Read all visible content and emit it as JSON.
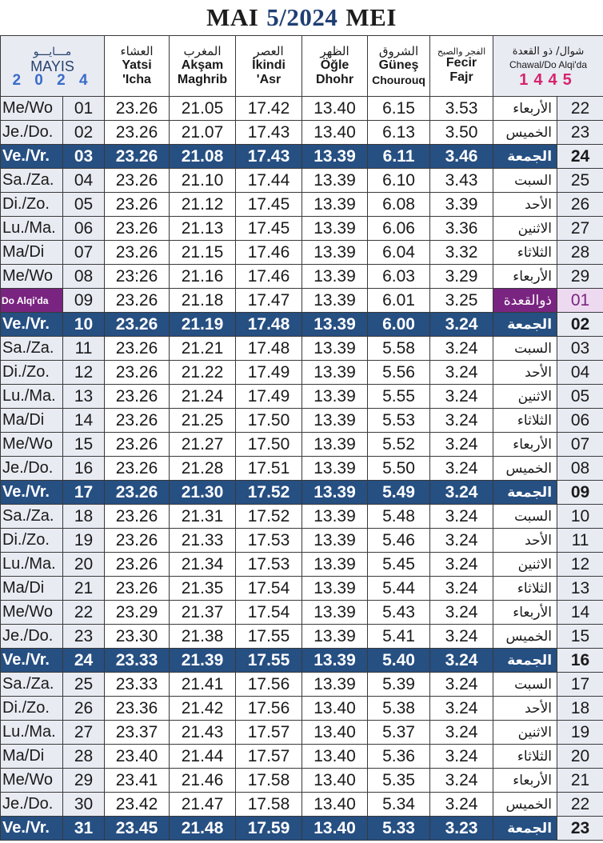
{
  "title": {
    "left": "MAI",
    "number": "5/2024",
    "right": "MEI"
  },
  "headers": {
    "month": {
      "ar": "مـــايـــو",
      "name": "MAYIS",
      "year": "2 0 2 4"
    },
    "isha": {
      "ar": "العشاء",
      "l1": "Yatsi",
      "l2": "'Icha"
    },
    "maghrib": {
      "ar": "المغرب",
      "l1": "Akşam",
      "l2": "Maghrib"
    },
    "asr": {
      "ar": "العصر",
      "l1": "İkindi",
      "l2": "'Asr"
    },
    "dhuhr": {
      "ar": "الظهر",
      "l1": "Öğle",
      "l2": "Dhohr"
    },
    "sunrise": {
      "ar": "الشروق",
      "l1": "Güneş",
      "l2": "Chourouq"
    },
    "fajr": {
      "ar": "الفجر والصبح",
      "l1": "Fecir",
      "l2": "Fajr"
    },
    "hijri": {
      "ar": "شوال/ ذو القعدة",
      "lat": "Chawal/Do Alqi'da",
      "year": "1445"
    }
  },
  "rows": [
    {
      "day": "Me/Wo",
      "date": "01",
      "isha": "23.26",
      "maghrib": "21.05",
      "asr": "17.42",
      "dhuhr": "13.40",
      "sunrise": "6.15",
      "fajr": "3.53",
      "arday": "الأربعاء",
      "hijri": "22",
      "type": ""
    },
    {
      "day": "Je./Do.",
      "date": "02",
      "isha": "23.26",
      "maghrib": "21.07",
      "asr": "17.43",
      "dhuhr": "13.40",
      "sunrise": "6.13",
      "fajr": "3.50",
      "arday": "الخميس",
      "hijri": "23",
      "type": ""
    },
    {
      "day": "Ve./Vr.",
      "date": "03",
      "isha": "23.26",
      "maghrib": "21.08",
      "asr": "17.43",
      "dhuhr": "13.39",
      "sunrise": "6.11",
      "fajr": "3.46",
      "arday": "الجمعة",
      "hijri": "24",
      "type": "fri"
    },
    {
      "day": "Sa./Za.",
      "date": "04",
      "isha": "23.26",
      "maghrib": "21.10",
      "asr": "17.44",
      "dhuhr": "13.39",
      "sunrise": "6.10",
      "fajr": "3.43",
      "arday": "السبت",
      "hijri": "25",
      "type": ""
    },
    {
      "day": "Di./Zo.",
      "date": "05",
      "isha": "23.26",
      "maghrib": "21.12",
      "asr": "17.45",
      "dhuhr": "13.39",
      "sunrise": "6.08",
      "fajr": "3.39",
      "arday": "الأحد",
      "hijri": "26",
      "type": ""
    },
    {
      "day": "Lu./Ma.",
      "date": "06",
      "isha": "23.26",
      "maghrib": "21.13",
      "asr": "17.45",
      "dhuhr": "13.39",
      "sunrise": "6.06",
      "fajr": "3.36",
      "arday": "الاثنين",
      "hijri": "27",
      "type": ""
    },
    {
      "day": "Ma/Di",
      "date": "07",
      "isha": "23.26",
      "maghrib": "21.15",
      "asr": "17.46",
      "dhuhr": "13.39",
      "sunrise": "6.04",
      "fajr": "3.32",
      "arday": "الثلاثاء",
      "hijri": "28",
      "type": ""
    },
    {
      "day": "Me/Wo",
      "date": "08",
      "isha": "23:26",
      "maghrib": "21.16",
      "asr": "17.46",
      "dhuhr": "13.39",
      "sunrise": "6.03",
      "fajr": "3.29",
      "arday": "الأربعاء",
      "hijri": "29",
      "type": ""
    },
    {
      "day": "Do Alqi'da",
      "date": "09",
      "isha": "23.26",
      "maghrib": "21.18",
      "asr": "17.47",
      "dhuhr": "13.39",
      "sunrise": "6.01",
      "fajr": "3.25",
      "arday": "ذوالقعدة",
      "hijri": "01",
      "type": "hl"
    },
    {
      "day": "Ve./Vr.",
      "date": "10",
      "isha": "23.26",
      "maghrib": "21.19",
      "asr": "17.48",
      "dhuhr": "13.39",
      "sunrise": "6.00",
      "fajr": "3.24",
      "arday": "الجمعة",
      "hijri": "02",
      "type": "fri"
    },
    {
      "day": "Sa./Za.",
      "date": "11",
      "isha": "23.26",
      "maghrib": "21.21",
      "asr": "17.48",
      "dhuhr": "13.39",
      "sunrise": "5.58",
      "fajr": "3.24",
      "arday": "السبت",
      "hijri": "03",
      "type": ""
    },
    {
      "day": "Di./Zo.",
      "date": "12",
      "isha": "23.26",
      "maghrib": "21.22",
      "asr": "17.49",
      "dhuhr": "13.39",
      "sunrise": "5.56",
      "fajr": "3.24",
      "arday": "الأحد",
      "hijri": "04",
      "type": ""
    },
    {
      "day": "Lu./Ma.",
      "date": "13",
      "isha": "23.26",
      "maghrib": "21.24",
      "asr": "17.49",
      "dhuhr": "13.39",
      "sunrise": "5.55",
      "fajr": "3.24",
      "arday": "الاثنين",
      "hijri": "05",
      "type": ""
    },
    {
      "day": "Ma/Di",
      "date": "14",
      "isha": "23.26",
      "maghrib": "21.25",
      "asr": "17.50",
      "dhuhr": "13.39",
      "sunrise": "5.53",
      "fajr": "3.24",
      "arday": "الثلاثاء",
      "hijri": "06",
      "type": ""
    },
    {
      "day": "Me/Wo",
      "date": "15",
      "isha": "23.26",
      "maghrib": "21.27",
      "asr": "17.50",
      "dhuhr": "13.39",
      "sunrise": "5.52",
      "fajr": "3.24",
      "arday": "الأربعاء",
      "hijri": "07",
      "type": ""
    },
    {
      "day": "Je./Do.",
      "date": "16",
      "isha": "23.26",
      "maghrib": "21.28",
      "asr": "17.51",
      "dhuhr": "13.39",
      "sunrise": "5.50",
      "fajr": "3.24",
      "arday": "الخميس",
      "hijri": "08",
      "type": ""
    },
    {
      "day": "Ve./Vr.",
      "date": "17",
      "isha": "23.26",
      "maghrib": "21.30",
      "asr": "17.52",
      "dhuhr": "13.39",
      "sunrise": "5.49",
      "fajr": "3.24",
      "arday": "الجمعة",
      "hijri": "09",
      "type": "fri"
    },
    {
      "day": "Sa./Za.",
      "date": "18",
      "isha": "23.26",
      "maghrib": "21.31",
      "asr": "17.52",
      "dhuhr": "13.39",
      "sunrise": "5.48",
      "fajr": "3.24",
      "arday": "السبت",
      "hijri": "10",
      "type": ""
    },
    {
      "day": "Di./Zo.",
      "date": "19",
      "isha": "23.26",
      "maghrib": "21.33",
      "asr": "17.53",
      "dhuhr": "13.39",
      "sunrise": "5.46",
      "fajr": "3.24",
      "arday": "الأحد",
      "hijri": "11",
      "type": ""
    },
    {
      "day": "Lu./Ma.",
      "date": "20",
      "isha": "23.26",
      "maghrib": "21.34",
      "asr": "17.53",
      "dhuhr": "13.39",
      "sunrise": "5.45",
      "fajr": "3.24",
      "arday": "الاثنين",
      "hijri": "12",
      "type": ""
    },
    {
      "day": "Ma/Di",
      "date": "21",
      "isha": "23.26",
      "maghrib": "21.35",
      "asr": "17.54",
      "dhuhr": "13.39",
      "sunrise": "5.44",
      "fajr": "3.24",
      "arday": "الثلاثاء",
      "hijri": "13",
      "type": ""
    },
    {
      "day": "Me/Wo",
      "date": "22",
      "isha": "23.29",
      "maghrib": "21.37",
      "asr": "17.54",
      "dhuhr": "13.39",
      "sunrise": "5.43",
      "fajr": "3.24",
      "arday": "الأربعاء",
      "hijri": "14",
      "type": ""
    },
    {
      "day": "Je./Do.",
      "date": "23",
      "isha": "23.30",
      "maghrib": "21.38",
      "asr": "17.55",
      "dhuhr": "13.39",
      "sunrise": "5.41",
      "fajr": "3.24",
      "arday": "الخميس",
      "hijri": "15",
      "type": ""
    },
    {
      "day": "Ve./Vr.",
      "date": "24",
      "isha": "23.33",
      "maghrib": "21.39",
      "asr": "17.55",
      "dhuhr": "13.39",
      "sunrise": "5.40",
      "fajr": "3.24",
      "arday": "الجمعة",
      "hijri": "16",
      "type": "fri"
    },
    {
      "day": "Sa./Za.",
      "date": "25",
      "isha": "23.33",
      "maghrib": "21.41",
      "asr": "17.56",
      "dhuhr": "13.39",
      "sunrise": "5.39",
      "fajr": "3.24",
      "arday": "السبت",
      "hijri": "17",
      "type": ""
    },
    {
      "day": "Di./Zo.",
      "date": "26",
      "isha": "23.36",
      "maghrib": "21.42",
      "asr": "17.56",
      "dhuhr": "13.40",
      "sunrise": "5.38",
      "fajr": "3.24",
      "arday": "الأحد",
      "hijri": "18",
      "type": ""
    },
    {
      "day": "Lu./Ma.",
      "date": "27",
      "isha": "23.37",
      "maghrib": "21.43",
      "asr": "17.57",
      "dhuhr": "13.40",
      "sunrise": "5.37",
      "fajr": "3.24",
      "arday": "الاثنين",
      "hijri": "19",
      "type": ""
    },
    {
      "day": "Ma/Di",
      "date": "28",
      "isha": "23.40",
      "maghrib": "21.44",
      "asr": "17.57",
      "dhuhr": "13.40",
      "sunrise": "5.36",
      "fajr": "3.24",
      "arday": "الثلاثاء",
      "hijri": "20",
      "type": ""
    },
    {
      "day": "Me/Wo",
      "date": "29",
      "isha": "23.41",
      "maghrib": "21.46",
      "asr": "17.58",
      "dhuhr": "13.40",
      "sunrise": "5.35",
      "fajr": "3.24",
      "arday": "الأربعاء",
      "hijri": "21",
      "type": ""
    },
    {
      "day": "Je./Do.",
      "date": "30",
      "isha": "23.42",
      "maghrib": "21.47",
      "asr": "17.58",
      "dhuhr": "13.40",
      "sunrise": "5.34",
      "fajr": "3.24",
      "arday": "الخميس",
      "hijri": "22",
      "type": ""
    },
    {
      "day": "Ve./Vr.",
      "date": "31",
      "isha": "23.45",
      "maghrib": "21.48",
      "asr": "17.59",
      "dhuhr": "13.40",
      "sunrise": "5.33",
      "fajr": "3.23",
      "arday": "الجمعة",
      "hijri": "23",
      "type": "fri"
    }
  ]
}
